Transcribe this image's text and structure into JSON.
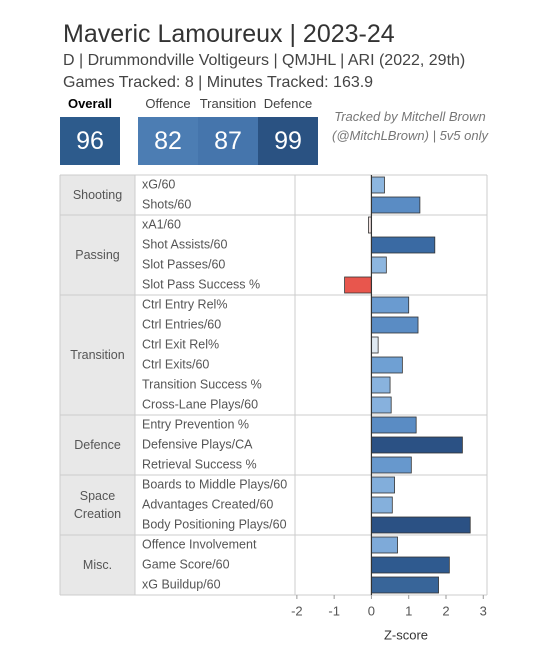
{
  "header": {
    "title": "Maveric Lamoureux | 2023-24",
    "subtitle": "D | Drummondville Voltigeurs | QMJHL | ARI (2022, 29th)",
    "games": "Games Tracked: 8 | Minutes Tracked: 163.9"
  },
  "scores": [
    {
      "label": "Overall",
      "value": 96,
      "color": "#2d5b8c"
    },
    {
      "label": "Offence",
      "value": 82,
      "color": "#4c7db3"
    },
    {
      "label": "Transition",
      "value": 87,
      "color": "#4575ac"
    },
    {
      "label": "Defence",
      "value": 99,
      "color": "#2a5282"
    }
  ],
  "note": "Tracked by Mitchell Brown (@MitchLBrown) | 5v5 only",
  "chart_data": {
    "type": "bar",
    "orientation": "horizontal",
    "xlabel": "Z-score",
    "xlim": [
      -2.05,
      3.1
    ],
    "xticks": [
      -2,
      -1,
      0,
      1,
      2,
      3
    ],
    "groups": [
      {
        "name": "Shooting",
        "categories": [
          "xG/60",
          "Shots/60"
        ],
        "values": [
          0.35,
          1.3
        ],
        "colors": [
          "#8db6df",
          "#5a8cc4"
        ]
      },
      {
        "name": "Passing",
        "categories": [
          "xA1/60",
          "Shot Assists/60",
          "Slot Passes/60",
          "Slot Pass Success %"
        ],
        "values": [
          -0.08,
          1.7,
          0.4,
          -0.72
        ],
        "colors": [
          "#f3e4e2",
          "#3a6aa3",
          "#8db6df",
          "#e8564d"
        ]
      },
      {
        "name": "Transition",
        "categories": [
          "Ctrl Entry Rel%",
          "Ctrl Entries/60",
          "Ctrl Exit Rel%",
          "Ctrl Exits/60",
          "Transition Success %",
          "Cross-Lane Plays/60"
        ],
        "values": [
          1.0,
          1.25,
          0.18,
          0.83,
          0.5,
          0.53
        ],
        "colors": [
          "#6a9bd0",
          "#5a8cc4",
          "#dfe9f2",
          "#6fa0d3",
          "#89b3de",
          "#87b1dd"
        ]
      },
      {
        "name": "Defence",
        "categories": [
          "Entry Prevention %",
          "Defensive Plays/CA",
          "Retrieval Success %"
        ],
        "values": [
          1.2,
          2.44,
          1.07
        ],
        "colors": [
          "#5a8cc4",
          "#2b5184",
          "#6798cd"
        ]
      },
      {
        "name": "Space Creation",
        "categories": [
          "Boards to Middle Plays/60",
          "Advantages Created/60",
          "Body Positioning Plays/60"
        ],
        "values": [
          0.62,
          0.56,
          2.65
        ],
        "colors": [
          "#82aedb",
          "#85b0dc",
          "#2b5184"
        ]
      },
      {
        "name": "Misc.",
        "categories": [
          "Offence Involvement",
          "Game Score/60",
          "xG Buildup/60"
        ],
        "values": [
          0.7,
          2.09,
          1.8
        ],
        "colors": [
          "#7eaad9",
          "#2f5a8f",
          "#386599"
        ]
      }
    ]
  }
}
